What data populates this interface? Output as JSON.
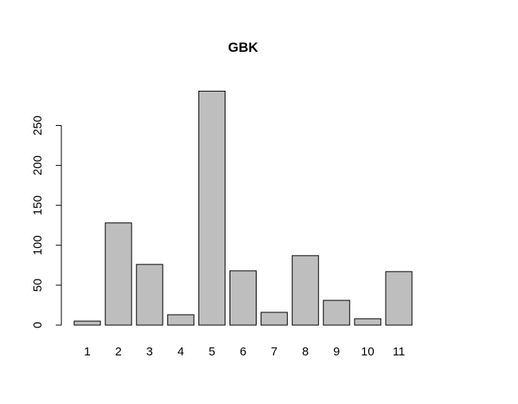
{
  "chart_data": {
    "type": "bar",
    "title": "GBK",
    "xlabel": "",
    "ylabel": "",
    "categories": [
      "1",
      "2",
      "3",
      "4",
      "5",
      "6",
      "7",
      "8",
      "9",
      "10",
      "11"
    ],
    "values": [
      5,
      128,
      76,
      13,
      293,
      68,
      16,
      87,
      31,
      8,
      67
    ],
    "y_ticks": [
      0,
      50,
      100,
      150,
      200,
      250
    ],
    "ylim": [
      0,
      300
    ],
    "grid": false,
    "bar_color": "#bebebe",
    "bar_stroke": "#000000"
  }
}
